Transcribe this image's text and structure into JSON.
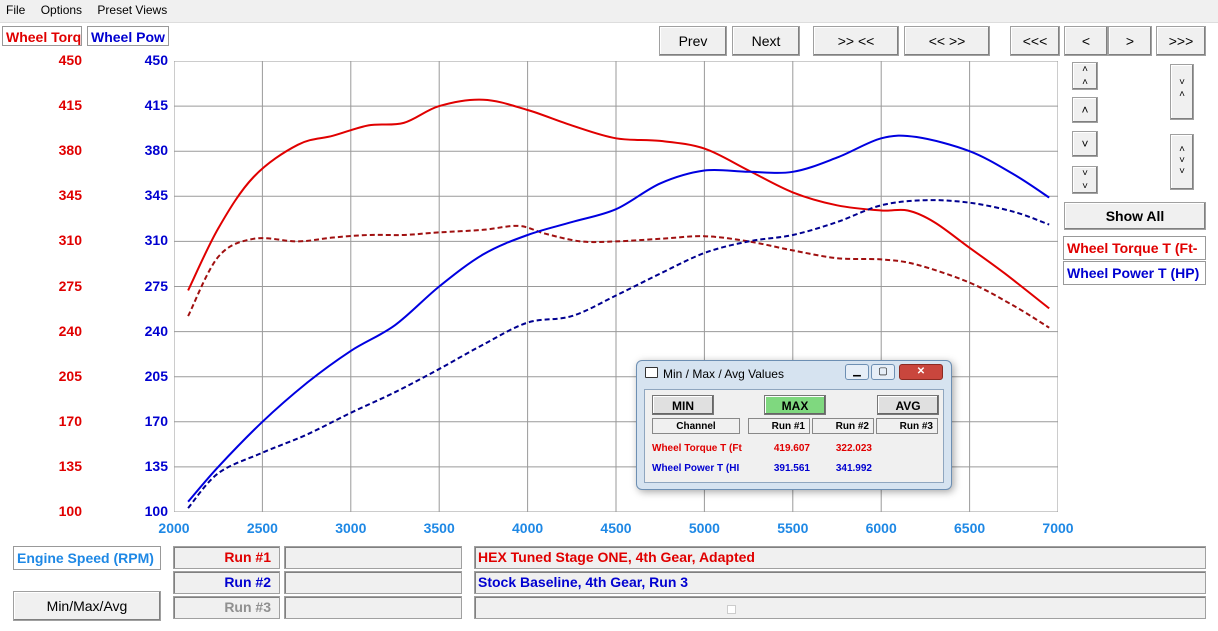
{
  "menu": [
    "File",
    "Options",
    "Preset Views"
  ],
  "headers": {
    "torque": "Wheel Torq",
    "power": "Wheel Pow"
  },
  "nav": {
    "prev": "Prev",
    "next": "Next",
    "zoom_in": ">> <<",
    "zoom_out": "<< >>",
    "shift_left": "<<<",
    "left": "<",
    "right": ">",
    "shift_right": ">>>"
  },
  "side": {
    "show_all": "Show All",
    "ch_torque": "Wheel Torque T (Ft-",
    "ch_power": "Wheel Power T (HP)"
  },
  "axes": {
    "torque_ticks": [
      "450",
      "415",
      "380",
      "345",
      "310",
      "275",
      "240",
      "205",
      "170",
      "135",
      "100"
    ],
    "power_ticks": [
      "450",
      "415",
      "380",
      "345",
      "310",
      "275",
      "240",
      "205",
      "170",
      "135",
      "100"
    ],
    "x_ticks": [
      "2000",
      "2500",
      "3000",
      "3500",
      "4000",
      "4500",
      "5000",
      "5500",
      "6000",
      "6500",
      "7000"
    ]
  },
  "bottom": {
    "x_channel": "Engine Speed (RPM)",
    "minmax_button": "Min/Max/Avg",
    "runs": [
      {
        "label": "Run #1",
        "desc": "HEX Tuned Stage ONE, 4th Gear, Adapted",
        "color": "#e00000"
      },
      {
        "label": "Run #2",
        "desc": "Stock Baseline, 4th Gear, Run 3",
        "color": "#0000d0"
      },
      {
        "label": "Run #3",
        "desc": "",
        "color": "#909090"
      }
    ]
  },
  "dialog": {
    "title": "Min / Max / Avg Values",
    "min": "MIN",
    "max": "MAX",
    "avg": "AVG",
    "cols": [
      "Channel",
      "Run #1",
      "Run #2",
      "Run #3"
    ],
    "rows": [
      {
        "channel": "Wheel Torque T (Ft",
        "run1": "419.607",
        "run2": "322.023",
        "run3": ""
      },
      {
        "channel": "Wheel Power T (HI",
        "run1": "391.561",
        "run2": "341.992",
        "run3": ""
      }
    ]
  },
  "colors": {
    "torque": "#e00000",
    "power": "#0000d0",
    "accent_max": "#7fd87f"
  },
  "chart_data": {
    "type": "line",
    "xlabel": "Engine Speed (RPM)",
    "xlim": [
      2000,
      7000
    ],
    "ylim_torque": [
      100,
      450
    ],
    "ylim_power": [
      100,
      450
    ],
    "grid": true,
    "series": [
      {
        "name": "Wheel Torque T (Ft-",
        "run": "Run #1",
        "style": "solid",
        "color": "#e00000",
        "x": [
          2080,
          2250,
          2450,
          2700,
          2900,
          3100,
          3300,
          3500,
          3750,
          4000,
          4250,
          4500,
          4750,
          5000,
          5250,
          5500,
          5750,
          6000,
          6150,
          6300,
          6500,
          6700,
          6950
        ],
        "y": [
          272,
          320,
          360,
          385,
          392,
          400,
          402,
          415,
          420,
          412,
          400,
          390,
          388,
          382,
          365,
          348,
          338,
          334,
          334,
          325,
          305,
          285,
          258
        ]
      },
      {
        "name": "Wheel Torque T (Ft-",
        "run": "Run #2",
        "style": "dashed",
        "color": "#a01010",
        "x": [
          2080,
          2250,
          2450,
          2700,
          2900,
          3100,
          3300,
          3500,
          3750,
          3950,
          4100,
          4300,
          4500,
          4750,
          5000,
          5250,
          5500,
          5750,
          6000,
          6200,
          6500,
          6750,
          6950
        ],
        "y": [
          252,
          298,
          312,
          310,
          313,
          315,
          315,
          317,
          319,
          322,
          316,
          310,
          310,
          312,
          314,
          310,
          303,
          297,
          296,
          292,
          278,
          260,
          243
        ]
      },
      {
        "name": "Wheel Power T (HP)",
        "run": "Run #1",
        "style": "solid",
        "color": "#0000e0",
        "x": [
          2080,
          2250,
          2500,
          2750,
          3000,
          3250,
          3500,
          3750,
          4000,
          4250,
          4500,
          4750,
          5000,
          5250,
          5500,
          5750,
          6000,
          6200,
          6500,
          6750,
          6950
        ],
        "y": [
          108,
          135,
          170,
          200,
          225,
          245,
          275,
          300,
          315,
          325,
          335,
          355,
          365,
          364,
          364,
          375,
          390,
          391,
          380,
          362,
          344
        ]
      },
      {
        "name": "Wheel Power T (HP)",
        "run": "Run #2",
        "style": "dashed",
        "color": "#000090",
        "x": [
          2080,
          2250,
          2500,
          2750,
          3000,
          3250,
          3500,
          3750,
          4000,
          4250,
          4500,
          4750,
          5000,
          5250,
          5500,
          5750,
          6000,
          6250,
          6500,
          6750,
          6950
        ],
        "y": [
          103,
          130,
          146,
          160,
          177,
          193,
          211,
          230,
          247,
          252,
          268,
          285,
          301,
          310,
          315,
          325,
          338,
          342,
          340,
          333,
          323
        ]
      }
    ]
  }
}
